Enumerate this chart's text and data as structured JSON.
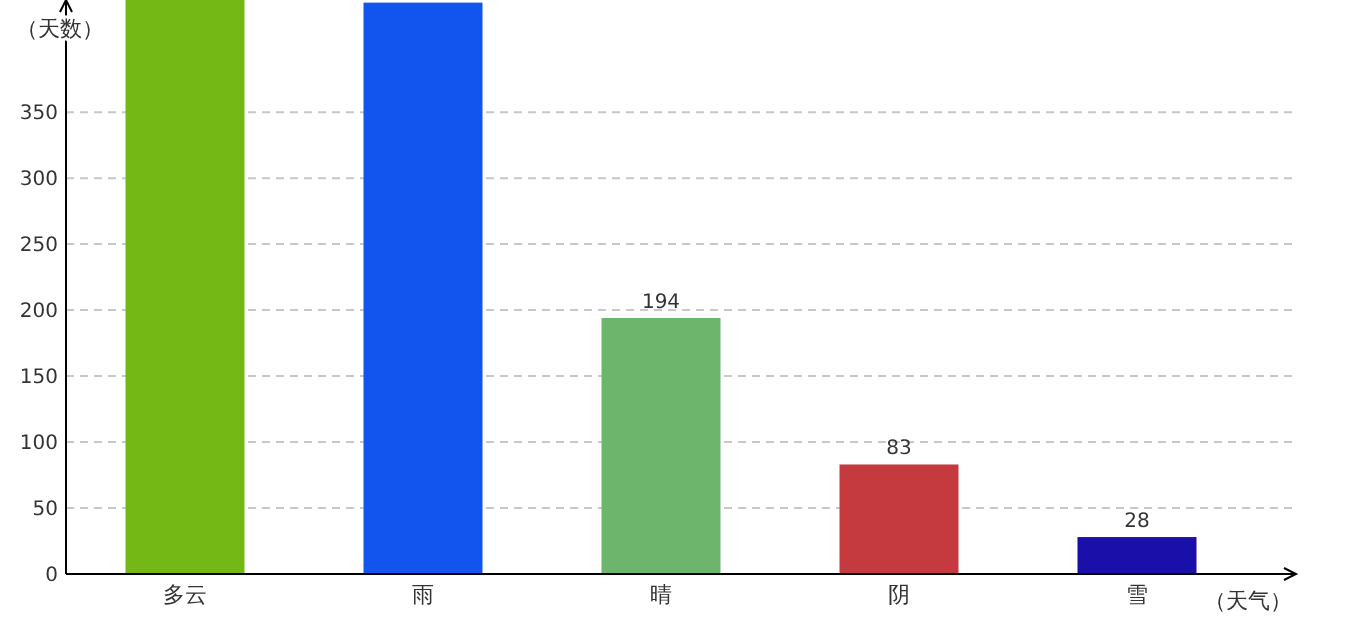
{
  "chart_data": {
    "type": "bar",
    "ylabel": "（天数）",
    "xlabel": "（天气）",
    "categories": [
      "多云",
      "雨",
      "晴",
      "阴",
      "雪"
    ],
    "values": [
      435,
      433,
      194,
      83,
      28
    ],
    "colors": [
      "#74b816",
      "#1155ee",
      "#6db56d",
      "#c43a3e",
      "#1a0fa8"
    ],
    "value_labels": [
      null,
      null,
      "194",
      "83",
      "28"
    ],
    "ylim": [
      0,
      435
    ],
    "yticks": [
      0,
      50,
      100,
      150,
      200,
      250,
      300,
      350
    ],
    "grid": "y"
  }
}
